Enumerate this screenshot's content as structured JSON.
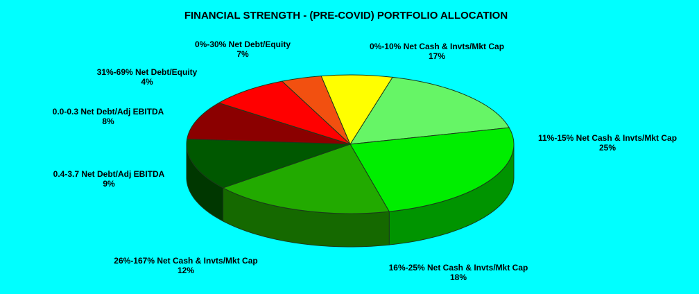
{
  "chart_data": {
    "type": "pie",
    "title": "FINANCIAL STRENGTH - (PRE-COVID) PORTFOLIO ALLOCATION",
    "slices": [
      {
        "label": "0%-10% Net Cash & Invts/Mkt Cap",
        "value": 17,
        "value_label": "17%",
        "color": "#66F566"
      },
      {
        "label": "11%-15% Net Cash & Invts/Mkt Cap",
        "value": 25,
        "value_label": "25%",
        "color": "#00EE00"
      },
      {
        "label": "16%-25% Net Cash & Invts/Mkt Cap",
        "value": 18,
        "value_label": "18%",
        "color": "#22AA00"
      },
      {
        "label": "26%-167% Net Cash & Invts/Mkt Cap",
        "value": 12,
        "value_label": "12%",
        "color": "#005800"
      },
      {
        "label": "0.4-3.7 Net Debt/Adj EBITDA",
        "value": 9,
        "value_label": "9%",
        "color": "#8B0000"
      },
      {
        "label": "0.0-0.3 Net Debt/Adj EBITDA",
        "value": 8,
        "value_label": "8%",
        "color": "#FF0000"
      },
      {
        "label": "31%-69% Net Debt/Equity",
        "value": 4,
        "value_label": "4%",
        "color": "#F25010"
      },
      {
        "label": "0%-30% Net Debt/Equity",
        "value": 7,
        "value_label": "7%",
        "color": "#FFFF00"
      }
    ]
  }
}
